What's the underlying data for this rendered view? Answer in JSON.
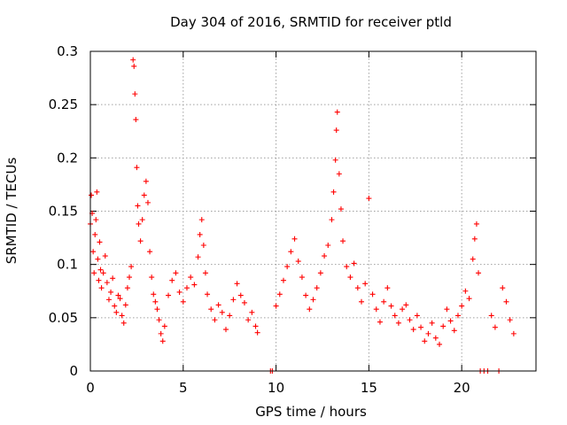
{
  "chart_data": {
    "type": "scatter",
    "title": "Day 304 of 2016, SRMTID for receiver ptld",
    "xlabel": "GPS time / hours",
    "ylabel": "SRMTID / TECUs",
    "xlim": [
      0,
      24.0
    ],
    "ylim": [
      0,
      0.3
    ],
    "x_ticks": [
      0,
      5,
      10,
      15,
      20
    ],
    "x_tick_labels": [
      "0",
      "5",
      "10",
      "15",
      "20"
    ],
    "y_ticks": [
      0,
      0.05,
      0.1,
      0.15,
      0.2,
      0.25,
      0.3
    ],
    "y_tick_labels": [
      "0",
      "0.05",
      "0.1",
      "0.15",
      "0.2",
      "0.25",
      "0.3"
    ],
    "grid": true,
    "marker": "+",
    "marker_color": "#ff0000",
    "series": [
      {
        "name": "SRMTID",
        "points": [
          [
            0.0,
            0.138
          ],
          [
            0.05,
            0.165
          ],
          [
            0.1,
            0.148
          ],
          [
            0.15,
            0.112
          ],
          [
            0.2,
            0.092
          ],
          [
            0.25,
            0.128
          ],
          [
            0.3,
            0.142
          ],
          [
            0.35,
            0.168
          ],
          [
            0.4,
            0.105
          ],
          [
            0.45,
            0.085
          ],
          [
            0.5,
            0.121
          ],
          [
            0.55,
            0.095
          ],
          [
            0.6,
            0.078
          ],
          [
            0.7,
            0.092
          ],
          [
            0.8,
            0.108
          ],
          [
            0.9,
            0.083
          ],
          [
            1.0,
            0.067
          ],
          [
            1.1,
            0.074
          ],
          [
            1.2,
            0.087
          ],
          [
            1.3,
            0.061
          ],
          [
            1.4,
            0.055
          ],
          [
            1.5,
            0.071
          ],
          [
            1.6,
            0.068
          ],
          [
            1.7,
            0.052
          ],
          [
            1.8,
            0.045
          ],
          [
            1.9,
            0.062
          ],
          [
            2.0,
            0.078
          ],
          [
            2.1,
            0.088
          ],
          [
            2.2,
            0.098
          ],
          [
            2.3,
            0.292
          ],
          [
            2.35,
            0.286
          ],
          [
            2.4,
            0.26
          ],
          [
            2.45,
            0.236
          ],
          [
            2.5,
            0.191
          ],
          [
            2.55,
            0.155
          ],
          [
            2.6,
            0.138
          ],
          [
            2.7,
            0.122
          ],
          [
            2.8,
            0.142
          ],
          [
            2.9,
            0.165
          ],
          [
            3.0,
            0.178
          ],
          [
            3.1,
            0.158
          ],
          [
            3.2,
            0.112
          ],
          [
            3.3,
            0.088
          ],
          [
            3.4,
            0.072
          ],
          [
            3.5,
            0.065
          ],
          [
            3.6,
            0.058
          ],
          [
            3.7,
            0.048
          ],
          [
            3.8,
            0.035
          ],
          [
            3.9,
            0.028
          ],
          [
            4.0,
            0.042
          ],
          [
            4.2,
            0.071
          ],
          [
            4.4,
            0.085
          ],
          [
            4.6,
            0.092
          ],
          [
            4.8,
            0.074
          ],
          [
            5.0,
            0.065
          ],
          [
            5.2,
            0.078
          ],
          [
            5.4,
            0.088
          ],
          [
            5.6,
            0.081
          ],
          [
            5.8,
            0.107
          ],
          [
            5.9,
            0.128
          ],
          [
            6.0,
            0.142
          ],
          [
            6.1,
            0.118
          ],
          [
            6.2,
            0.092
          ],
          [
            6.3,
            0.072
          ],
          [
            6.5,
            0.058
          ],
          [
            6.7,
            0.048
          ],
          [
            6.9,
            0.062
          ],
          [
            7.1,
            0.055
          ],
          [
            7.3,
            0.039
          ],
          [
            7.5,
            0.052
          ],
          [
            7.7,
            0.067
          ],
          [
            7.9,
            0.082
          ],
          [
            8.1,
            0.071
          ],
          [
            8.3,
            0.064
          ],
          [
            8.5,
            0.048
          ],
          [
            8.7,
            0.055
          ],
          [
            8.9,
            0.042
          ],
          [
            9.0,
            0.036
          ],
          [
            9.7,
            0.0
          ],
          [
            9.8,
            0.0
          ],
          [
            10.0,
            0.061
          ],
          [
            10.2,
            0.072
          ],
          [
            10.4,
            0.085
          ],
          [
            10.6,
            0.098
          ],
          [
            10.8,
            0.112
          ],
          [
            11.0,
            0.124
          ],
          [
            11.2,
            0.103
          ],
          [
            11.4,
            0.088
          ],
          [
            11.6,
            0.071
          ],
          [
            11.8,
            0.058
          ],
          [
            12.0,
            0.067
          ],
          [
            12.2,
            0.078
          ],
          [
            12.4,
            0.092
          ],
          [
            12.6,
            0.108
          ],
          [
            12.8,
            0.118
          ],
          [
            13.0,
            0.142
          ],
          [
            13.1,
            0.168
          ],
          [
            13.2,
            0.198
          ],
          [
            13.25,
            0.226
          ],
          [
            13.3,
            0.243
          ],
          [
            13.4,
            0.185
          ],
          [
            13.5,
            0.152
          ],
          [
            13.6,
            0.122
          ],
          [
            13.8,
            0.098
          ],
          [
            14.0,
            0.088
          ],
          [
            14.2,
            0.101
          ],
          [
            14.4,
            0.078
          ],
          [
            14.6,
            0.065
          ],
          [
            14.8,
            0.082
          ],
          [
            15.0,
            0.162
          ],
          [
            15.2,
            0.072
          ],
          [
            15.4,
            0.058
          ],
          [
            15.6,
            0.046
          ],
          [
            15.8,
            0.065
          ],
          [
            16.0,
            0.078
          ],
          [
            16.2,
            0.061
          ],
          [
            16.4,
            0.052
          ],
          [
            16.6,
            0.045
          ],
          [
            16.8,
            0.058
          ],
          [
            17.0,
            0.062
          ],
          [
            17.2,
            0.048
          ],
          [
            17.4,
            0.039
          ],
          [
            17.6,
            0.052
          ],
          [
            17.8,
            0.041
          ],
          [
            18.0,
            0.028
          ],
          [
            18.2,
            0.035
          ],
          [
            18.4,
            0.045
          ],
          [
            18.6,
            0.031
          ],
          [
            18.8,
            0.025
          ],
          [
            19.0,
            0.042
          ],
          [
            19.2,
            0.058
          ],
          [
            19.4,
            0.047
          ],
          [
            19.6,
            0.038
          ],
          [
            19.8,
            0.052
          ],
          [
            20.0,
            0.061
          ],
          [
            20.2,
            0.075
          ],
          [
            20.4,
            0.068
          ],
          [
            20.6,
            0.105
          ],
          [
            20.7,
            0.124
          ],
          [
            20.8,
            0.138
          ],
          [
            20.9,
            0.092
          ],
          [
            21.0,
            0.0
          ],
          [
            21.2,
            0.0
          ],
          [
            21.4,
            0.0
          ],
          [
            21.6,
            0.052
          ],
          [
            21.8,
            0.041
          ],
          [
            22.0,
            0.0
          ],
          [
            22.2,
            0.078
          ],
          [
            22.4,
            0.065
          ],
          [
            22.6,
            0.048
          ],
          [
            22.8,
            0.035
          ]
        ]
      }
    ]
  }
}
